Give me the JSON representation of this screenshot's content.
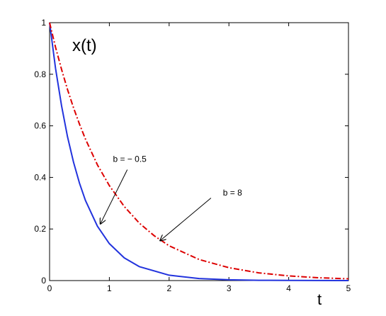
{
  "chart_data": {
    "type": "line",
    "title": "",
    "xlabel": "t",
    "ylabel": "",
    "plot_label": "x(t)",
    "xlim": [
      0,
      5
    ],
    "ylim": [
      0,
      1
    ],
    "xticks": [
      0,
      1,
      2,
      3,
      4,
      5
    ],
    "yticks": [
      0,
      0.2,
      0.4,
      0.6,
      0.8,
      1
    ],
    "xtick_labels": [
      "0",
      "1",
      "2",
      "3",
      "4",
      "5"
    ],
    "ytick_labels": [
      "0",
      "0.2",
      "0.4",
      "0.6",
      "0.8",
      "1"
    ],
    "grid": false,
    "series": [
      {
        "color": "#2233dd",
        "line_style": "solid",
        "x": [
          0,
          0.1,
          0.2,
          0.3,
          0.4,
          0.5,
          0.6,
          0.8,
          1.0,
          1.25,
          1.5,
          2.0,
          2.5,
          3.0,
          3.5,
          4.0,
          4.5,
          5.0
        ],
        "y": [
          1.0,
          0.823,
          0.678,
          0.558,
          0.459,
          0.378,
          0.311,
          0.211,
          0.143,
          0.088,
          0.054,
          0.021,
          0.008,
          0.003,
          0.001,
          0.0005,
          0.0002,
          0.0001
        ]
      },
      {
        "color": "#dd0000",
        "line_style": "dash-dot",
        "x": [
          0,
          0.1,
          0.2,
          0.3,
          0.4,
          0.5,
          0.6,
          0.8,
          1.0,
          1.25,
          1.5,
          1.75,
          2.0,
          2.5,
          3.0,
          3.5,
          4.0,
          4.5,
          5.0
        ],
        "y": [
          1.0,
          0.905,
          0.819,
          0.741,
          0.67,
          0.607,
          0.549,
          0.449,
          0.368,
          0.287,
          0.223,
          0.174,
          0.135,
          0.082,
          0.05,
          0.03,
          0.018,
          0.011,
          0.007
        ]
      }
    ],
    "annotations": [
      {
        "text": "b = − 0.5",
        "text_at": [
          1.06,
          0.46
        ],
        "arrow_from": [
          1.3,
          0.43
        ],
        "arrow_to": [
          0.85,
          0.22
        ]
      },
      {
        "text": "b = 8",
        "text_at": [
          2.9,
          0.33
        ],
        "arrow_from": [
          2.7,
          0.32
        ],
        "arrow_to": [
          1.85,
          0.155
        ]
      }
    ]
  }
}
